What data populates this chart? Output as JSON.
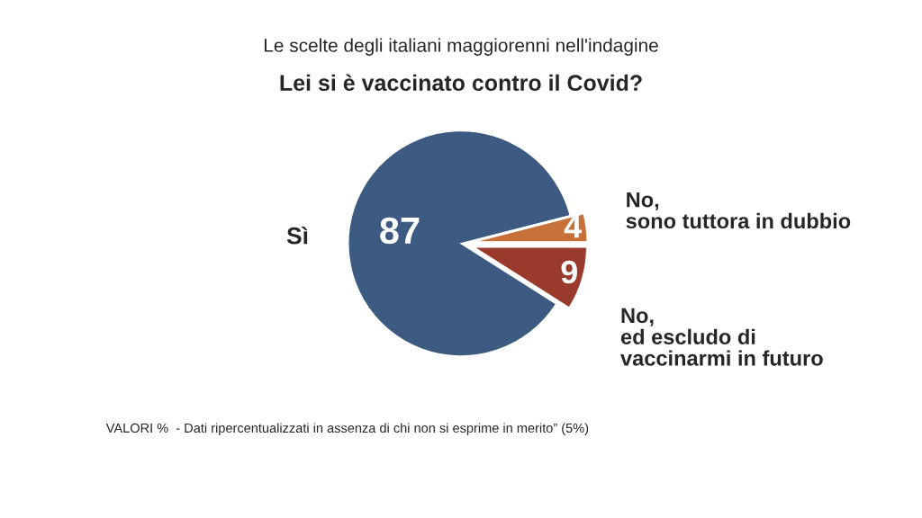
{
  "chart_data": {
    "type": "pie",
    "subtitle": "Le scelte degli italiani maggiorenni nell'indagine",
    "title": "Lei si è vaccinato contro il Covid?",
    "categories": [
      "Sì",
      "No,\nsono tuttora in dubbio",
      "No,\ned escludo di\nvaccinarmi in futuro"
    ],
    "values": [
      87,
      4,
      9
    ],
    "colors": [
      "#3c5a82",
      "#c8703a",
      "#9a3a2c"
    ],
    "data_labels": true,
    "annotations": [
      "VALORI %  - Dati ripercentualizzati in assenza di chi non si esprime in merito” (5%)"
    ]
  }
}
